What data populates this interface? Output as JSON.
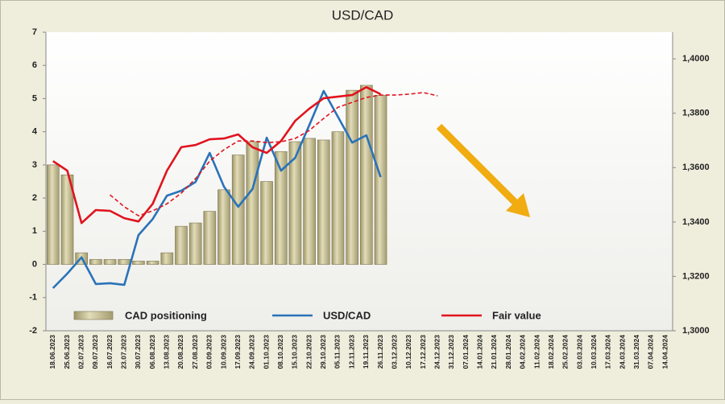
{
  "chart_data": {
    "type": "bar-line",
    "title": "USD/CAD",
    "categories": [
      "18.06.2023",
      "25.06.2023",
      "02.07.2023",
      "09.07.2023",
      "16.07.2023",
      "23.07.2023",
      "30.07.2023",
      "06.08.2023",
      "13.08.2023",
      "20.08.2023",
      "27.08.2023",
      "03.09.2023",
      "10.09.2023",
      "17.09.2023",
      "24.09.2023",
      "01.10.2023",
      "08.10.2023",
      "15.10.2023",
      "22.10.2023",
      "29.10.2023",
      "05.11.2023",
      "12.11.2023",
      "19.11.2023",
      "26.11.2023",
      "03.12.2023",
      "10.12.2023",
      "17.12.2023",
      "24.12.2023",
      "31.12.2023",
      "07.01.2024",
      "14.01.2024",
      "21.01.2024",
      "28.01.2024",
      "04.02.2024",
      "11.02.2024",
      "18.02.2024",
      "25.02.2024",
      "03.03.2024",
      "10.03.2024",
      "17.03.2024",
      "24.03.2024",
      "31.03.2024",
      "07.04.2024",
      "14.04.2024"
    ],
    "ylim": [
      -2,
      7
    ],
    "yticks": [
      -2,
      -1,
      0,
      1,
      2,
      3,
      4,
      5,
      6,
      7
    ],
    "y2lim": [
      1.3,
      1.4098
    ],
    "y2ticks": [
      {
        "value": 1.3,
        "label": "1,3000"
      },
      {
        "value": 1.32,
        "label": "1,3200"
      },
      {
        "value": 1.34,
        "label": "1,3400"
      },
      {
        "value": 1.36,
        "label": "1,3600"
      },
      {
        "value": 1.38,
        "label": "1,3800"
      },
      {
        "value": 1.4,
        "label": "1,4000"
      }
    ],
    "series": [
      {
        "name": "CAD positioning",
        "kind": "bar",
        "color": "#c8c196",
        "values": [
          3.0,
          2.7,
          0.35,
          0.15,
          0.15,
          0.15,
          0.1,
          0.1,
          0.35,
          1.15,
          1.25,
          1.6,
          2.25,
          3.3,
          3.7,
          2.5,
          3.4,
          3.7,
          3.8,
          3.75,
          4.0,
          5.25,
          5.4,
          5.1,
          null,
          null,
          null,
          null,
          null,
          null,
          null,
          null,
          null,
          null,
          null,
          null,
          null,
          null,
          null,
          null,
          null,
          null,
          null,
          null
        ]
      },
      {
        "name": "USD/CAD",
        "kind": "line",
        "axis": "y2",
        "color": "#2a73b8",
        "values": [
          1.3157,
          1.321,
          1.327,
          1.3172,
          1.3175,
          1.3169,
          1.3352,
          1.3411,
          1.3497,
          1.3515,
          1.3547,
          1.3654,
          1.353,
          1.3456,
          1.3521,
          1.371,
          1.3589,
          1.3636,
          1.3757,
          1.3882,
          1.3787,
          1.3692,
          1.3719,
          1.3565,
          null,
          null,
          null,
          null,
          null,
          null,
          null,
          null,
          null,
          null,
          null,
          null,
          null,
          null,
          null,
          null,
          null,
          null,
          null,
          null
        ]
      },
      {
        "name": "Fair value",
        "kind": "line",
        "axis": "y2",
        "color": "#e0141e",
        "values": [
          1.3624,
          1.3589,
          1.3396,
          1.3444,
          1.3441,
          1.3414,
          1.3402,
          1.3467,
          1.3589,
          1.3675,
          1.3683,
          1.3704,
          1.3707,
          1.3722,
          1.3675,
          1.3654,
          1.3698,
          1.3772,
          1.3817,
          1.3855,
          1.3861,
          1.3867,
          1.3896,
          1.387,
          null,
          null,
          null,
          null,
          null,
          null,
          null,
          null,
          null,
          null,
          null,
          null,
          null,
          null,
          null,
          null,
          null,
          null,
          null,
          null
        ]
      },
      {
        "kind": "line",
        "axis": "y2",
        "dash": true,
        "color": "#e0141e",
        "values": [
          null,
          null,
          null,
          null,
          1.35,
          1.3456,
          1.3423,
          1.3441,
          1.3467,
          1.3506,
          1.3559,
          1.3624,
          1.3666,
          1.3698,
          1.3698,
          1.3692,
          1.3695,
          1.3707,
          1.3737,
          1.3781,
          1.3822,
          1.384,
          1.3858,
          1.3867,
          1.3867,
          1.387,
          1.3876,
          1.3864,
          null,
          null,
          null,
          null,
          null,
          null,
          null,
          null,
          null,
          null,
          null,
          null,
          null,
          null,
          null,
          null
        ]
      }
    ]
  }
}
